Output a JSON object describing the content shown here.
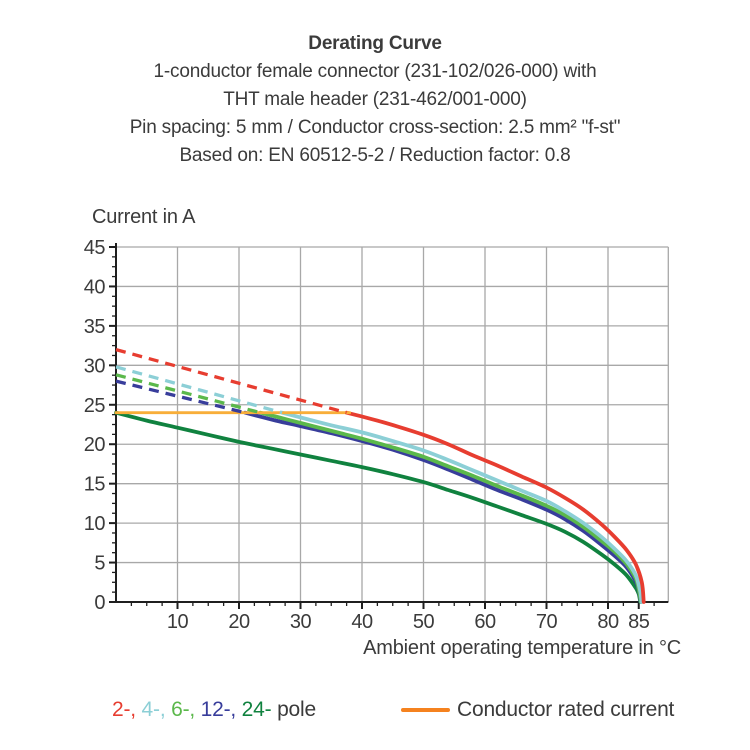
{
  "header": {
    "title": "Derating Curve",
    "subtitle_lines": [
      "1-conductor female connector (231-102/026-000) with",
      "THT male header (231-462/001-000)",
      "Pin spacing: 5 mm / Conductor cross-section: 2.5 mm² \"f-st\"",
      "Based on: EN 60512-5-2 / Reduction factor: 0.8"
    ]
  },
  "chart_data": {
    "type": "line",
    "title": "Derating Curve",
    "ylabel": "Current in A",
    "xlabel": "Ambient operating temperature in °C",
    "xlim": [
      0,
      89.8
    ],
    "ylim": [
      0,
      45
    ],
    "x_ticks_major": [
      10,
      20,
      30,
      40,
      50,
      60,
      70,
      80,
      85
    ],
    "x_tick_minor_step": 2.5,
    "y_ticks_major": [
      0,
      5,
      10,
      15,
      20,
      25,
      30,
      35,
      40,
      45
    ],
    "y_tick_minor_step": 1.25,
    "grid": true,
    "colors": {
      "grid": "#a8a8a8",
      "axis": "#1f1f1f",
      "text": "#3b3b3b",
      "rated_line": "#f8ae39"
    },
    "series": [
      {
        "name": "conductor-rated-current",
        "label": "Conductor rated current",
        "color": "#f8ae39",
        "style": "solid-thin",
        "points": [
          [
            0,
            24
          ],
          [
            38,
            24
          ]
        ]
      },
      {
        "name": "24-pole",
        "label": "24- pole",
        "color": "#10823f",
        "dashed": [],
        "solid": [
          [
            0,
            24
          ],
          [
            5,
            23
          ],
          [
            10,
            22.1
          ],
          [
            15,
            21.2
          ],
          [
            20,
            20.3
          ],
          [
            25,
            19.5
          ],
          [
            30,
            18.7
          ],
          [
            35,
            17.9
          ],
          [
            40,
            17.1
          ],
          [
            45,
            16.2
          ],
          [
            50,
            15.2
          ],
          [
            54,
            14.2
          ],
          [
            58,
            13.2
          ],
          [
            62,
            12.1
          ],
          [
            66,
            11
          ],
          [
            70,
            9.9
          ],
          [
            73,
            8.9
          ],
          [
            76,
            7.6
          ],
          [
            79,
            6
          ],
          [
            81,
            4.8
          ],
          [
            83,
            3.4
          ],
          [
            84.5,
            1.8
          ],
          [
            85,
            1
          ],
          [
            85.25,
            0
          ]
        ]
      },
      {
        "name": "12-pole",
        "label": "12- pole",
        "color": "#383d9b",
        "dashed": [
          [
            0,
            28
          ],
          [
            21,
            24
          ]
        ],
        "solid": [
          [
            21,
            24
          ],
          [
            26,
            23
          ],
          [
            30,
            22.3
          ],
          [
            35,
            21.4
          ],
          [
            40,
            20.4
          ],
          [
            45,
            19.3
          ],
          [
            50,
            18
          ],
          [
            54,
            16.8
          ],
          [
            58,
            15.5
          ],
          [
            62,
            14.2
          ],
          [
            66,
            13
          ],
          [
            70,
            11.7
          ],
          [
            73,
            10.5
          ],
          [
            76,
            9
          ],
          [
            79,
            7.2
          ],
          [
            81,
            5.9
          ],
          [
            83,
            4.4
          ],
          [
            84.5,
            2.6
          ],
          [
            85,
            1.4
          ],
          [
            85.3,
            0
          ]
        ]
      },
      {
        "name": "6-pole",
        "label": "6- pole",
        "color": "#5bb84b",
        "dashed": [
          [
            0,
            28.8
          ],
          [
            23.5,
            24
          ]
        ],
        "solid": [
          [
            23.5,
            24
          ],
          [
            28,
            23.1
          ],
          [
            32,
            22.3
          ],
          [
            36,
            21.5
          ],
          [
            40,
            20.7
          ],
          [
            45,
            19.6
          ],
          [
            50,
            18.4
          ],
          [
            54,
            17.2
          ],
          [
            58,
            16
          ],
          [
            62,
            14.7
          ],
          [
            66,
            13.5
          ],
          [
            70,
            12.2
          ],
          [
            73,
            11
          ],
          [
            76,
            9.5
          ],
          [
            79,
            7.7
          ],
          [
            81,
            6.4
          ],
          [
            83,
            4.8
          ],
          [
            84.5,
            3
          ],
          [
            85.1,
            1.2
          ],
          [
            85.35,
            0
          ]
        ]
      },
      {
        "name": "4-pole",
        "label": "4- pole",
        "color": "#8ccfd6",
        "dashed": [
          [
            0,
            29.8
          ],
          [
            27,
            24
          ]
        ],
        "solid": [
          [
            27,
            24
          ],
          [
            31,
            23.2
          ],
          [
            35,
            22.4
          ],
          [
            40,
            21.5
          ],
          [
            45,
            20.4
          ],
          [
            50,
            19.2
          ],
          [
            54,
            18
          ],
          [
            58,
            16.7
          ],
          [
            62,
            15.4
          ],
          [
            66,
            14.1
          ],
          [
            70,
            12.8
          ],
          [
            73,
            11.5
          ],
          [
            76,
            10
          ],
          [
            79,
            8.2
          ],
          [
            81,
            6.8
          ],
          [
            83,
            5.2
          ],
          [
            84.5,
            3.4
          ],
          [
            85.2,
            1.5
          ],
          [
            85.45,
            0
          ]
        ]
      },
      {
        "name": "2-pole",
        "label": "2- pole",
        "color": "#e73d30",
        "dashed": [
          [
            0,
            32
          ],
          [
            37.5,
            24
          ]
        ],
        "solid": [
          [
            37.5,
            24
          ],
          [
            42,
            23.1
          ],
          [
            46,
            22.2
          ],
          [
            50,
            21.2
          ],
          [
            54,
            20
          ],
          [
            58,
            18.6
          ],
          [
            62,
            17.3
          ],
          [
            66,
            15.9
          ],
          [
            70,
            14.5
          ],
          [
            73,
            13.2
          ],
          [
            76,
            11.7
          ],
          [
            79,
            9.8
          ],
          [
            81,
            8.3
          ],
          [
            83,
            6.6
          ],
          [
            84.5,
            4.8
          ],
          [
            85.5,
            2.5
          ],
          [
            85.8,
            0
          ]
        ]
      }
    ],
    "legend_position": "bottom"
  },
  "legend": {
    "pole_parts": [
      {
        "label": "2-, ",
        "color": "#e73d30"
      },
      {
        "label": "4-, ",
        "color": "#8ccfd6"
      },
      {
        "label": "6-, ",
        "color": "#5bb84b"
      },
      {
        "label": "12-, ",
        "color": "#383d9b"
      },
      {
        "label": "24- ",
        "color": "#10823f"
      }
    ],
    "pole_word": "pole",
    "rated": {
      "label": "Conductor rated current",
      "color": "#f5821f"
    }
  }
}
